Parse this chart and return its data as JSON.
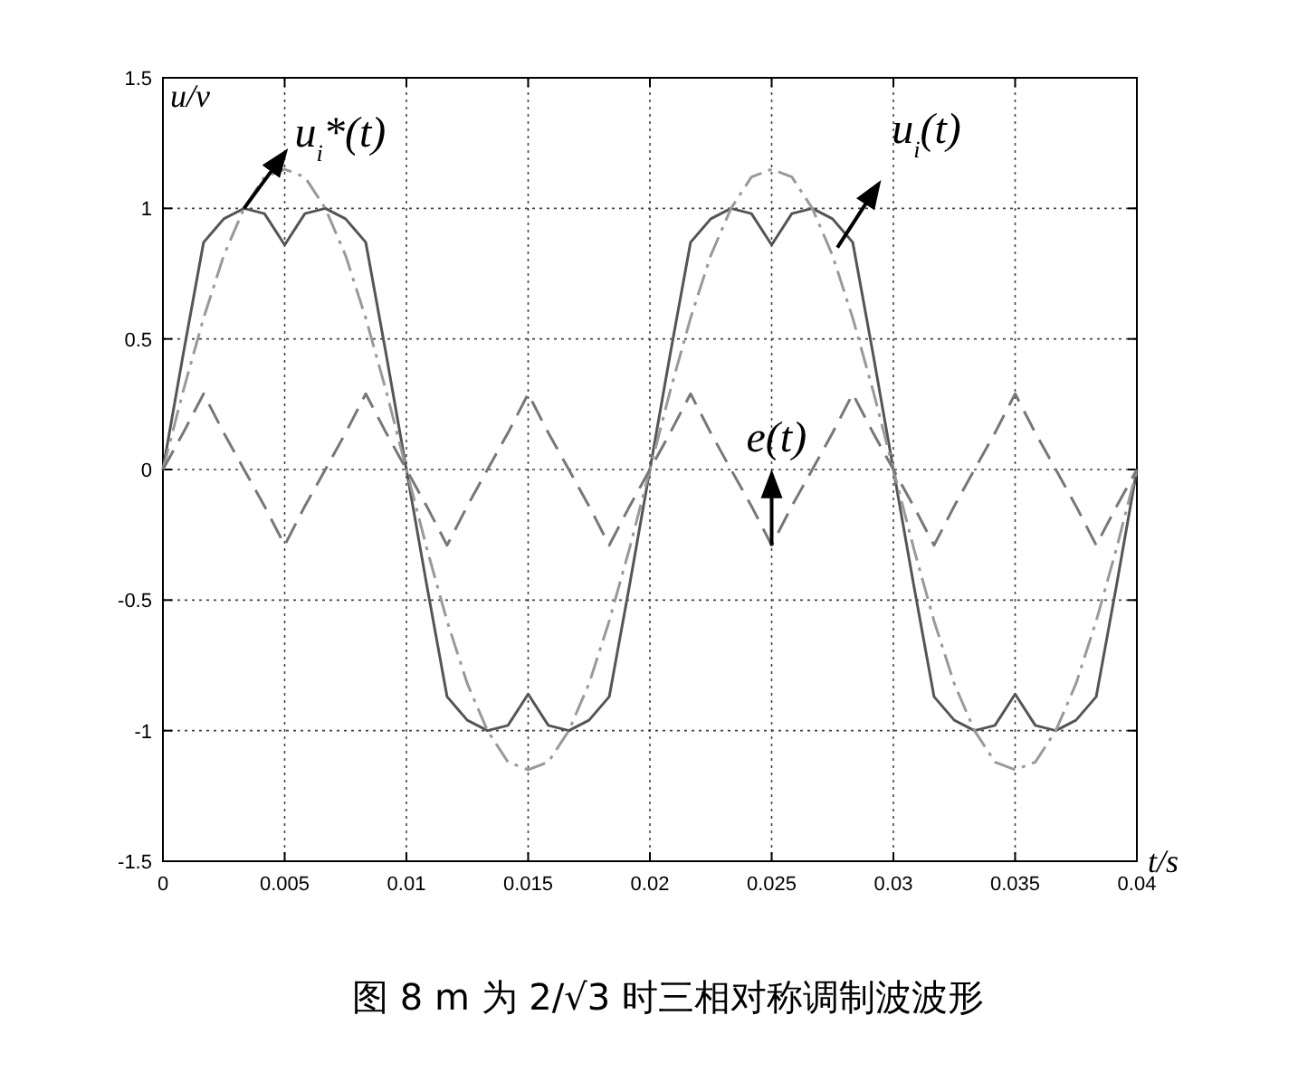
{
  "chart_data": {
    "type": "line",
    "title": "图 8   m 为 2/√3 时三相对称调制波波形",
    "xlabel": "t/s",
    "ylabel": "u/v",
    "x": [
      0,
      0.00083,
      0.00167,
      0.0025,
      0.00333,
      0.00417,
      0.005,
      0.00583,
      0.00667,
      0.0075,
      0.00833,
      0.00917,
      0.01,
      0.01083,
      0.01167,
      0.0125,
      0.01333,
      0.01417,
      0.015,
      0.01583,
      0.01667,
      0.0175,
      0.01833,
      0.01917,
      0.02,
      0.02083,
      0.02167,
      0.0225,
      0.02333,
      0.02417,
      0.025,
      0.02583,
      0.02667,
      0.0275,
      0.02833,
      0.02917,
      0.03,
      0.03083,
      0.03167,
      0.0325,
      0.03333,
      0.03417,
      0.035,
      0.03583,
      0.03667,
      0.0375,
      0.03833,
      0.03917,
      0.04
    ],
    "series": [
      {
        "color": "#555555",
        "line_style": "solid",
        "values": [
          0,
          0.44,
          0.87,
          0.96,
          1.0,
          0.98,
          0.86,
          0.98,
          1.0,
          0.96,
          0.87,
          0.44,
          0,
          -0.44,
          -0.87,
          -0.96,
          -1.0,
          -0.98,
          -0.86,
          -0.98,
          -1.0,
          -0.96,
          -0.87,
          -0.44,
          0,
          0.44,
          0.87,
          0.96,
          1.0,
          0.98,
          0.86,
          0.98,
          1.0,
          0.96,
          0.87,
          0.44,
          0,
          -0.44,
          -0.87,
          -0.96,
          -1.0,
          -0.98,
          -0.86,
          -0.98,
          -1.0,
          -0.96,
          -0.87,
          -0.44,
          0
        ]
      },
      {
        "color": "#999999",
        "line_style": "dashdot",
        "values": [
          0,
          0.3,
          0.58,
          0.82,
          1.0,
          1.12,
          1.15,
          1.12,
          1.0,
          0.82,
          0.58,
          0.3,
          0,
          -0.3,
          -0.58,
          -0.82,
          -1.0,
          -1.12,
          -1.15,
          -1.12,
          -1.0,
          -0.82,
          -0.58,
          -0.3,
          0,
          0.3,
          0.58,
          0.82,
          1.0,
          1.12,
          1.15,
          1.12,
          1.0,
          0.82,
          0.58,
          0.3,
          0,
          -0.3,
          -0.58,
          -0.82,
          -1.0,
          -1.12,
          -1.15,
          -1.12,
          -1.0,
          -0.82,
          -0.58,
          -0.3,
          0
        ]
      },
      {
        "color": "#777777",
        "line_style": "dashed",
        "values": [
          0,
          0.14,
          0.29,
          0.14,
          0,
          -0.14,
          -0.29,
          -0.14,
          0,
          0.14,
          0.29,
          0.14,
          0,
          -0.14,
          -0.29,
          -0.14,
          0,
          0.14,
          0.29,
          0.14,
          0,
          -0.14,
          -0.29,
          -0.14,
          0,
          0.14,
          0.29,
          0.14,
          0,
          -0.14,
          -0.29,
          -0.14,
          0,
          0.14,
          0.29,
          0.14,
          0,
          -0.14,
          -0.29,
          -0.14,
          0,
          0.14,
          0.29,
          0.14,
          0,
          -0.14,
          -0.29,
          -0.14,
          0
        ]
      }
    ],
    "annotations": [
      {
        "text": "u$_{i}$*(t)",
        "x": 0.00333,
        "y": 1.0
      },
      {
        "text": "u$_{i}$(t)",
        "x": 0.0277,
        "y": 0.85
      },
      {
        "text": "e(t)",
        "x": 0.025,
        "y": -0.29
      }
    ],
    "xlim": [
      0,
      0.04
    ],
    "ylim": [
      -1.5,
      1.5
    ],
    "xticks": [
      0,
      0.005,
      0.01,
      0.015,
      0.02,
      0.025,
      0.03,
      0.035,
      0.04
    ],
    "yticks": [
      -1.5,
      -1,
      -0.5,
      0,
      0.5,
      1,
      1.5
    ],
    "grid": true
  }
}
